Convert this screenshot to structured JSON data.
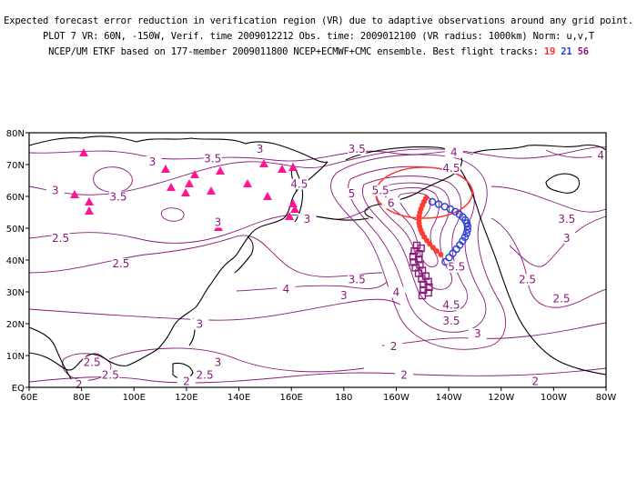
{
  "title": {
    "line1": "Expected forecast error reduction in verification region (VR) due to adaptive observations around any grid point.",
    "line2": "PLOT 7 VR: 60N, -150W, Verif. time 2009012212 Obs. time: 2009012100 (VR radius: 1000km) Norm: u,v,T",
    "line3_prefix": "NCEP/UM ETKF based on 177-member 2009011800 NCEP+ECMWF+CMC ensemble. Best flight tracks:",
    "track_a": "19",
    "track_b": "21",
    "track_c": "56"
  },
  "colors": {
    "contour": "#8a1a7a",
    "coast": "#000000",
    "vr_circle": "#ff3b2f",
    "track_19": "#ff3b2f",
    "track_21": "#2b3fd8",
    "track_56": "#8a1a7a",
    "raob": "#ff1493"
  },
  "map": {
    "lon_labels": [
      "60E",
      "80E",
      "100E",
      "120E",
      "140E",
      "160E",
      "180",
      "160W",
      "140W",
      "120W",
      "100W",
      "80W"
    ],
    "lat_labels": [
      "EQ",
      "10N",
      "20N",
      "30N",
      "40N",
      "50N",
      "60N",
      "70N",
      "80N"
    ],
    "lon_min": 60,
    "lon_max": 280,
    "lat_min": 0,
    "lat_max": 80,
    "contour_labels": [
      {
        "v": "3.5",
        "lon": 130,
        "lat": 71
      },
      {
        "v": "3",
        "lon": 107,
        "lat": 70
      },
      {
        "v": "3",
        "lon": 148,
        "lat": 74
      },
      {
        "v": "3.5",
        "lon": 185,
        "lat": 74
      },
      {
        "v": "4",
        "lon": 222,
        "lat": 73
      },
      {
        "v": "4.5",
        "lon": 221,
        "lat": 68
      },
      {
        "v": "4",
        "lon": 278,
        "lat": 72
      },
      {
        "v": "3",
        "lon": 70,
        "lat": 61
      },
      {
        "v": "3.5",
        "lon": 94,
        "lat": 59
      },
      {
        "v": "4.5",
        "lon": 163,
        "lat": 63
      },
      {
        "v": "5",
        "lon": 183,
        "lat": 60
      },
      {
        "v": "5.5",
        "lon": 194,
        "lat": 61
      },
      {
        "v": "6",
        "lon": 198,
        "lat": 57
      },
      {
        "v": "3",
        "lon": 132,
        "lat": 51
      },
      {
        "v": "2.5",
        "lon": 72,
        "lat": 46
      },
      {
        "v": "2.5",
        "lon": 95,
        "lat": 38
      },
      {
        "v": "3",
        "lon": 166,
        "lat": 52
      },
      {
        "v": "3.5",
        "lon": 265,
        "lat": 52
      },
      {
        "v": "3",
        "lon": 265,
        "lat": 46
      },
      {
        "v": "5.5",
        "lon": 223,
        "lat": 37
      },
      {
        "v": "3.5",
        "lon": 185,
        "lat": 33
      },
      {
        "v": "4",
        "lon": 158,
        "lat": 30
      },
      {
        "v": "3",
        "lon": 180,
        "lat": 28
      },
      {
        "v": "4",
        "lon": 200,
        "lat": 29
      },
      {
        "v": "2.5",
        "lon": 250,
        "lat": 33
      },
      {
        "v": "2.5",
        "lon": 263,
        "lat": 27
      },
      {
        "v": "4.5",
        "lon": 221,
        "lat": 25
      },
      {
        "v": "3.5",
        "lon": 221,
        "lat": 20
      },
      {
        "v": "3",
        "lon": 231,
        "lat": 16
      },
      {
        "v": "3",
        "lon": 125,
        "lat": 19
      },
      {
        "v": "2",
        "lon": 199,
        "lat": 12
      },
      {
        "v": "2.5",
        "lon": 84,
        "lat": 7
      },
      {
        "v": "2.5",
        "lon": 91,
        "lat": 3
      },
      {
        "v": "3",
        "lon": 132,
        "lat": 7
      },
      {
        "v": "2.5",
        "lon": 127,
        "lat": 3
      },
      {
        "v": "2",
        "lon": 120,
        "lat": 1
      },
      {
        "v": "2",
        "lon": 79,
        "lat": 0
      },
      {
        "v": "2",
        "lon": 203,
        "lat": 3
      },
      {
        "v": "2",
        "lon": 253,
        "lat": 1
      }
    ]
  }
}
